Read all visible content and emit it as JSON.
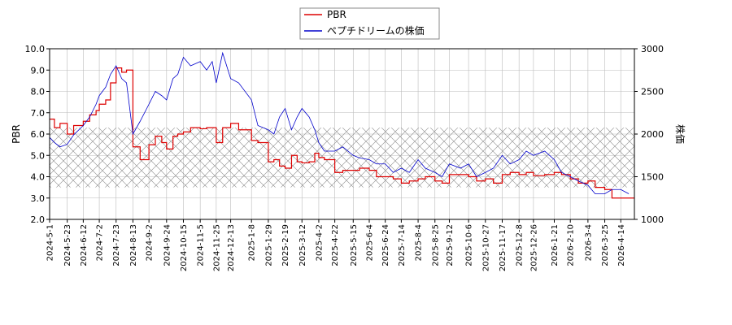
{
  "chart_data": {
    "type": "line",
    "title": "",
    "legend": {
      "placement": "top-center",
      "entries": [
        "PBR",
        "ペプチドリームの株価"
      ]
    },
    "colors": {
      "pbr": "#dd0000",
      "price": "#0000cc",
      "grid": "#bbbbbb",
      "band": "#888888"
    },
    "x_ticks": [
      "2024-5-1",
      "2024-5-23",
      "2024-6-12",
      "2024-7-2",
      "2024-7-23",
      "2024-8-13",
      "2024-9-2",
      "2024-9-24",
      "2024-10-15",
      "2024-11-5",
      "2024-11-25",
      "2024-12-13",
      "2025-1-8",
      "2025-1-29",
      "2025-2-19",
      "2025-3-12",
      "2025-4-2",
      "2025-4-22",
      "2025-5-15",
      "2025-6-4",
      "2025-6-24",
      "2025-7-14",
      "2025-8-4",
      "2025-8-25",
      "2025-9-12",
      "2025-10-6",
      "2025-10-27",
      "2025-11-17",
      "2025-12-8",
      "2025-12-26",
      "2026-1-21",
      "2026-2-10",
      "2026-3-4",
      "2026-3-25",
      "2026-4-14"
    ],
    "left_axis": {
      "label": "PBR",
      "range": [
        2.0,
        10.0
      ],
      "ticks": [
        "2.0",
        "3.0",
        "4.0",
        "5.0",
        "6.0",
        "7.0",
        "8.0",
        "9.0",
        "10.0"
      ]
    },
    "right_axis": {
      "label": "株価",
      "range": [
        1000,
        3000
      ],
      "ticks": [
        "1000",
        "1500",
        "2000",
        "2500",
        "3000"
      ]
    },
    "band": {
      "axis": "left",
      "range": [
        3.5,
        6.3
      ],
      "pattern": "crosshatch"
    },
    "grid": true,
    "series": [
      {
        "name": "PBR",
        "axis": "left",
        "x": [
          "2024-5-1",
          "2024-5-7",
          "2024-5-14",
          "2024-5-23",
          "2024-5-31",
          "2024-6-12",
          "2024-6-20",
          "2024-6-28",
          "2024-7-2",
          "2024-7-10",
          "2024-7-16",
          "2024-7-23",
          "2024-7-30",
          "2024-8-5",
          "2024-8-13",
          "2024-8-22",
          "2024-9-2",
          "2024-9-10",
          "2024-9-18",
          "2024-9-24",
          "2024-10-2",
          "2024-10-8",
          "2024-10-15",
          "2024-10-24",
          "2024-11-5",
          "2024-11-13",
          "2024-11-20",
          "2024-11-25",
          "2024-12-3",
          "2024-12-13",
          "2024-12-23",
          "2025-1-8",
          "2025-1-16",
          "2025-1-29",
          "2025-2-5",
          "2025-2-12",
          "2025-2-19",
          "2025-2-27",
          "2025-3-6",
          "2025-3-12",
          "2025-3-21",
          "2025-3-28",
          "2025-4-2",
          "2025-4-9",
          "2025-4-22",
          "2025-5-2",
          "2025-5-15",
          "2025-5-23",
          "2025-6-4",
          "2025-6-13",
          "2025-6-24",
          "2025-7-4",
          "2025-7-14",
          "2025-7-24",
          "2025-8-4",
          "2025-8-13",
          "2025-8-25",
          "2025-9-3",
          "2025-9-12",
          "2025-9-26",
          "2025-10-6",
          "2025-10-16",
          "2025-10-27",
          "2025-11-6",
          "2025-11-17",
          "2025-11-27",
          "2025-12-8",
          "2025-12-17",
          "2025-12-26",
          "2026-1-9",
          "2026-1-21",
          "2026-1-30",
          "2026-2-10",
          "2026-2-20",
          "2026-3-4",
          "2026-3-13",
          "2026-3-25",
          "2026-4-3",
          "2026-4-14",
          "2026-4-24"
        ],
        "values": [
          6.7,
          6.3,
          6.5,
          6.0,
          6.4,
          6.6,
          6.9,
          7.1,
          7.4,
          7.6,
          8.4,
          9.1,
          8.9,
          9.0,
          5.4,
          4.8,
          5.5,
          5.9,
          5.6,
          5.3,
          5.9,
          6.0,
          6.1,
          6.3,
          6.25,
          6.3,
          6.3,
          5.6,
          6.3,
          6.5,
          6.2,
          5.7,
          5.6,
          4.7,
          4.8,
          4.5,
          4.4,
          5.0,
          4.7,
          4.65,
          4.7,
          5.1,
          4.9,
          4.8,
          4.2,
          4.3,
          4.3,
          4.4,
          4.3,
          4.0,
          4.0,
          3.9,
          3.7,
          3.8,
          3.9,
          4.0,
          3.8,
          3.7,
          4.1,
          4.1,
          4.0,
          3.8,
          3.9,
          3.7,
          4.1,
          4.2,
          4.1,
          4.2,
          4.05,
          4.1,
          4.2,
          4.1,
          3.9,
          3.7,
          3.8,
          3.5,
          3.4,
          3.0,
          3.0,
          3.0
        ]
      },
      {
        "name": "ペプチドリームの株価",
        "axis": "right",
        "x": [
          "2024-5-1",
          "2024-5-7",
          "2024-5-14",
          "2024-5-23",
          "2024-5-31",
          "2024-6-12",
          "2024-6-20",
          "2024-6-28",
          "2024-7-2",
          "2024-7-10",
          "2024-7-16",
          "2024-7-23",
          "2024-7-30",
          "2024-8-5",
          "2024-8-13",
          "2024-8-22",
          "2024-9-2",
          "2024-9-10",
          "2024-9-18",
          "2024-9-24",
          "2024-10-2",
          "2024-10-8",
          "2024-10-15",
          "2024-10-24",
          "2024-11-5",
          "2024-11-13",
          "2024-11-20",
          "2024-11-25",
          "2024-12-3",
          "2024-12-13",
          "2024-12-23",
          "2025-1-8",
          "2025-1-16",
          "2025-1-29",
          "2025-2-5",
          "2025-2-12",
          "2025-2-19",
          "2025-2-27",
          "2025-3-6",
          "2025-3-12",
          "2025-3-21",
          "2025-3-28",
          "2025-4-2",
          "2025-4-9",
          "2025-4-22",
          "2025-5-2",
          "2025-5-15",
          "2025-5-23",
          "2025-6-4",
          "2025-6-13",
          "2025-6-24",
          "2025-7-4",
          "2025-7-14",
          "2025-7-24",
          "2025-8-4",
          "2025-8-13",
          "2025-8-25",
          "2025-9-3",
          "2025-9-12",
          "2025-9-26",
          "2025-10-6",
          "2025-10-16",
          "2025-10-27",
          "2025-11-6",
          "2025-11-17",
          "2025-11-27",
          "2025-12-8",
          "2025-12-17",
          "2025-12-26",
          "2026-1-9",
          "2026-1-21",
          "2026-1-30",
          "2026-2-10",
          "2026-2-20",
          "2026-3-4",
          "2026-3-13",
          "2026-3-25",
          "2026-4-3",
          "2026-4-14",
          "2026-4-24"
        ],
        "values": [
          1960,
          1900,
          1850,
          1880,
          1990,
          2100,
          2200,
          2350,
          2450,
          2550,
          2700,
          2800,
          2650,
          2600,
          2000,
          2150,
          2350,
          2500,
          2450,
          2400,
          2650,
          2700,
          2900,
          2800,
          2850,
          2750,
          2850,
          2600,
          2950,
          2650,
          2600,
          2400,
          2100,
          2050,
          2000,
          2200,
          2300,
          2050,
          2200,
          2300,
          2200,
          2050,
          1900,
          1800,
          1800,
          1850,
          1750,
          1720,
          1700,
          1650,
          1650,
          1550,
          1600,
          1550,
          1700,
          1600,
          1550,
          1500,
          1650,
          1600,
          1650,
          1500,
          1550,
          1600,
          1750,
          1650,
          1700,
          1800,
          1750,
          1800,
          1700,
          1550,
          1500,
          1450,
          1400,
          1300,
          1300,
          1350,
          1350,
          1300
        ]
      }
    ]
  }
}
